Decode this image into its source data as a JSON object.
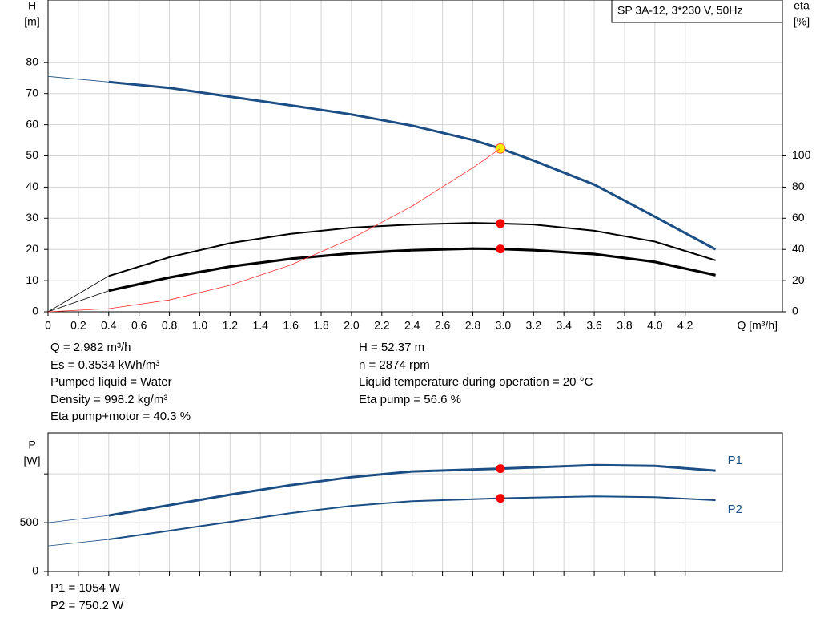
{
  "chart_data": [
    {
      "type": "line",
      "title": "SP 3A-12, 3*230 V, 50Hz",
      "y_label": [
        "H",
        "[m]"
      ],
      "y2_label": [
        "eta",
        "[%]"
      ],
      "x_label": "Q [m³/h]",
      "xlim": [
        0,
        4.84
      ],
      "xticks": [
        0,
        0.2,
        0.4,
        0.6,
        0.8,
        {
          "value": 1,
          "label": "1.0"
        },
        1.2,
        1.4,
        1.6,
        1.8,
        {
          "value": 2,
          "label": "2.0"
        },
        2.2,
        2.4,
        2.6,
        2.8,
        {
          "value": 3,
          "label": "3.0"
        },
        3.2,
        3.4,
        3.6,
        3.8,
        {
          "value": 4,
          "label": "4.0"
        },
        4.2
      ],
      "show_xtick_labels": true,
      "ylim": [
        0,
        100
      ],
      "yticks": [
        0,
        10,
        20,
        30,
        40,
        50,
        60,
        70,
        80
      ],
      "y2lim": [
        0,
        200
      ],
      "y2ticks": [
        0,
        20,
        40,
        60,
        80,
        100
      ],
      "grid": true,
      "duty_q": 2.982,
      "series": [
        {
          "color": "#1a4e85",
          "width": 3,
          "extrapolated_start": true,
          "marker": "yellow",
          "x": [
            0,
            0.4,
            0.8,
            1.2,
            1.6,
            2.0,
            2.4,
            2.8,
            2.982,
            3.2,
            3.6,
            4.0,
            4.4
          ],
          "values": [
            75.5,
            73.7,
            71.8,
            69,
            66.2,
            63.3,
            59.7,
            55.1,
            52.37,
            48.5,
            40.8,
            30.5,
            20
          ]
        },
        {
          "color": "#000000",
          "width": 2,
          "axis": "y2",
          "extrapolated_start": true,
          "marker": "red",
          "x": [
            0,
            0.4,
            0.8,
            1.2,
            1.6,
            2.0,
            2.4,
            2.8,
            2.982,
            3.2,
            3.6,
            4.0,
            4.4
          ],
          "values": [
            0,
            23,
            35,
            44,
            50,
            54,
            56,
            57,
            56.6,
            56,
            52,
            45,
            33
          ]
        },
        {
          "color": "#000000",
          "width": 3.2,
          "axis": "y2",
          "extrapolated_start": true,
          "marker": "red",
          "x": [
            0,
            0.4,
            0.8,
            1.2,
            1.6,
            2.0,
            2.4,
            2.8,
            2.982,
            3.2,
            3.6,
            4.0,
            4.4
          ],
          "values": [
            0,
            13.5,
            22,
            29,
            34,
            37.5,
            39.5,
            40.5,
            40.3,
            39.5,
            37,
            32,
            23.5
          ]
        },
        {
          "color": "#ff3030",
          "width": 0.8,
          "x": [
            0,
            0.4,
            0.8,
            1.2,
            1.6,
            2.0,
            2.4,
            2.8,
            2.982
          ],
          "values": [
            0,
            1,
            3.8,
            8.5,
            15,
            23.5,
            33.9,
            46.2,
            52.37
          ]
        }
      ],
      "info_left": [
        "Q = 2.982 m³/h",
        "Es = 0.3534 kWh/m³",
        "Pumped liquid = Water",
        "Density = 998.2 kg/m³",
        "Eta pump+motor = 40.3 %"
      ],
      "info_right": [
        "H = 52.37 m",
        "n = 2874 rpm",
        "Liquid temperature during operation = 20 °C",
        "Eta pump = 56.6 %"
      ]
    },
    {
      "type": "line",
      "y_label": [
        "P",
        "[W]"
      ],
      "xlim": [
        0,
        4.84
      ],
      "xticks": [
        0,
        0.2,
        0.4,
        0.6,
        0.8,
        1,
        1.2,
        1.4,
        1.6,
        1.8,
        2,
        2.2,
        2.4,
        2.6,
        2.8,
        3,
        3.2,
        3.4,
        3.6,
        3.8,
        4,
        4.2
      ],
      "show_xtick_labels": false,
      "ylim": [
        0,
        1420
      ],
      "yticks": [
        0,
        500
      ],
      "minor_yticks": [
        1000
      ],
      "grid": true,
      "duty_q": 2.982,
      "series": [
        {
          "name": "P1",
          "color": "#1a4e85",
          "width": 3,
          "extrapolated_start": true,
          "marker": "red",
          "x": [
            0,
            0.4,
            0.8,
            1.2,
            1.6,
            2.0,
            2.4,
            2.982,
            3.6,
            4.0,
            4.4
          ],
          "values": [
            500,
            574,
            680,
            787,
            885,
            967,
            1025,
            1054,
            1090,
            1082,
            1033
          ]
        },
        {
          "name": "P2",
          "color": "#1a4e85",
          "width": 2,
          "extrapolated_start": true,
          "marker": "red",
          "x": [
            0,
            0.4,
            0.8,
            1.2,
            1.6,
            2.0,
            2.4,
            2.982,
            3.6,
            4.0,
            4.4
          ],
          "values": [
            262,
            328,
            418,
            508,
            598,
            672,
            721,
            750.2,
            770,
            762,
            730
          ]
        }
      ],
      "info_left": [
        "P1 = 1054 W",
        "P2 = 750.2 W"
      ]
    }
  ]
}
